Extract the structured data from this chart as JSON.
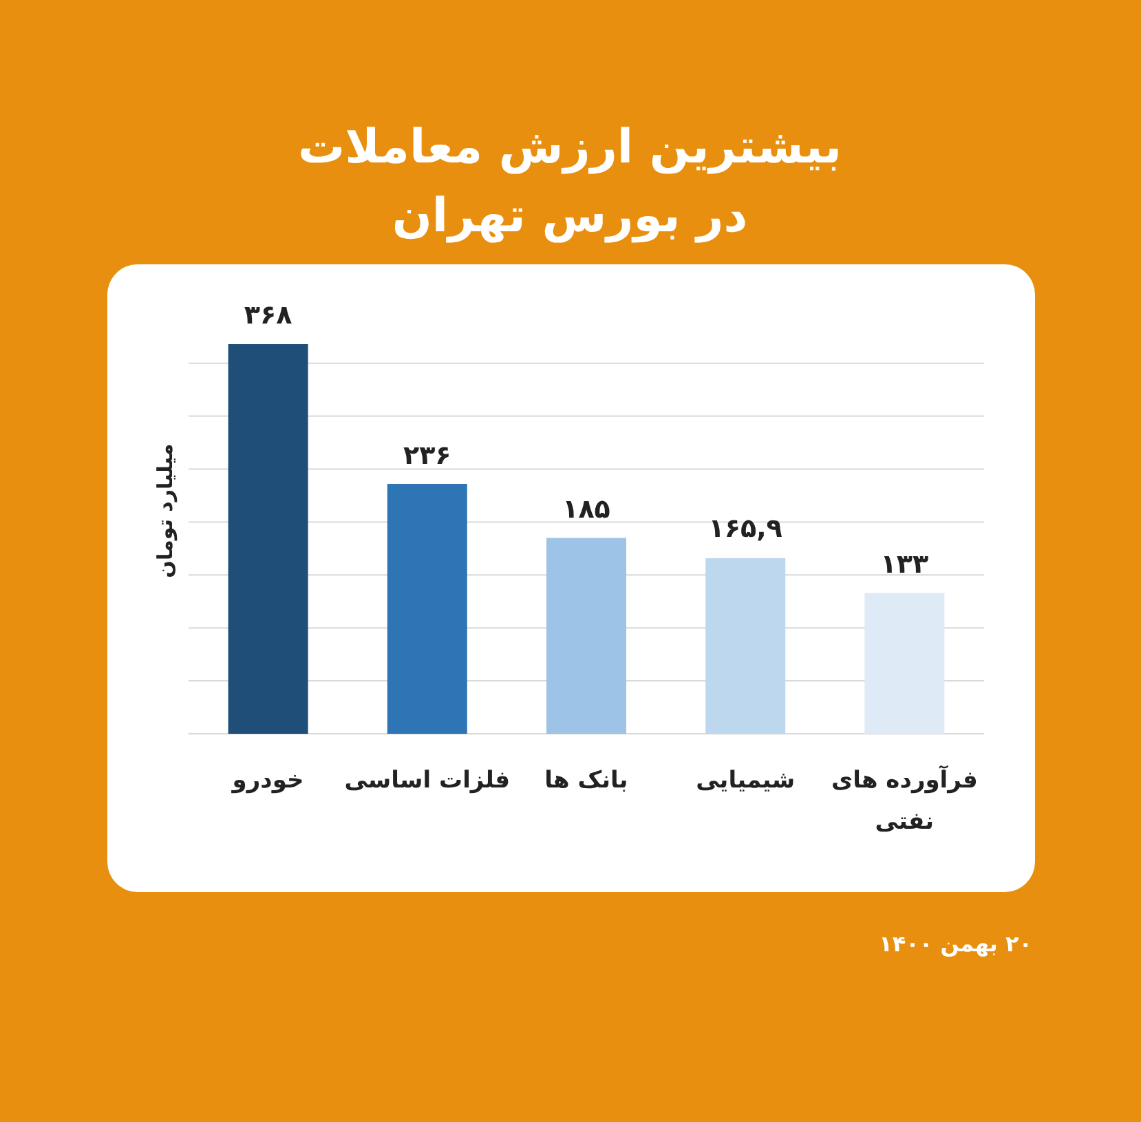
{
  "chart_data": {
    "type": "bar",
    "title": "بیشترین ارزش معاملات در بورس تهران",
    "ylabel": "میلیارد تومان",
    "categories": [
      "خودرو",
      "فلزات اساسی",
      "بانک ها",
      "شیمیایی",
      "فرآورده های نفتی"
    ],
    "values": [
      368,
      236,
      185,
      165.9,
      133
    ],
    "colors": [
      "#1f4e79",
      "#2e75b6",
      "#9dc3e6",
      "#bdd7ee",
      "#deebf7"
    ],
    "value_labels": [
      "۳۶۸",
      "۲۳۶",
      "۱۸۵",
      "۱۶۵,۹",
      "۱۳۳"
    ],
    "yticks": [
      {
        "value": 0,
        "label": null
      },
      {
        "value": 50,
        "label": null
      },
      {
        "value": 100,
        "label": null
      },
      {
        "value": 150,
        "label": null
      },
      {
        "value": 200,
        "label": null
      },
      {
        "value": 250,
        "label": null
      },
      {
        "value": 300,
        "label": null
      },
      {
        "value": 350,
        "label": null
      }
    ],
    "tick_labels": "x",
    "grid": "y",
    "annotations": [
      "۲۰ بهمن ۱۴۰۰"
    ]
  }
}
